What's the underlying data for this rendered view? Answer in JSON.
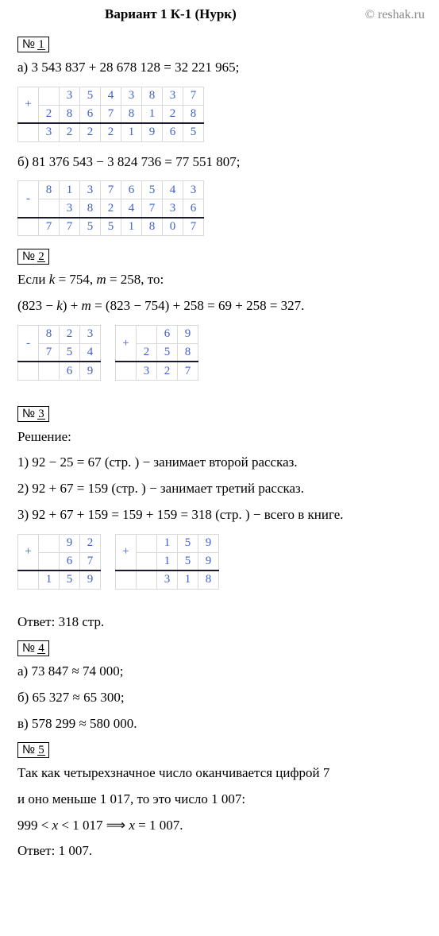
{
  "header": {
    "title": "Вариант 1  К-1 (Нурк)",
    "copyright": "© reshak.ru"
  },
  "task1": {
    "badge_prefix": "№",
    "badge_num": "1",
    "line_a": "а) 3 543 837 + 28 678 128 = 32 221 965;",
    "line_b": "б) 81 376 543 − 3 824 736 = 77 551 807;",
    "calc_a": {
      "op": "+",
      "rows": [
        [
          "",
          "",
          "3",
          "5",
          "4",
          "3",
          "8",
          "3",
          "7"
        ],
        [
          "",
          "2",
          "8",
          "6",
          "7",
          "8",
          "1",
          "2",
          "8"
        ],
        [
          "",
          "3",
          "2",
          "2",
          "2",
          "1",
          "9",
          "6",
          "5"
        ]
      ]
    },
    "calc_b": {
      "op": "-",
      "rows": [
        [
          "",
          "8",
          "1",
          "3",
          "7",
          "6",
          "5",
          "4",
          "3"
        ],
        [
          "",
          "",
          "3",
          "8",
          "2",
          "4",
          "7",
          "3",
          "6"
        ],
        [
          "",
          "7",
          "7",
          "5",
          "5",
          "1",
          "8",
          "0",
          "7"
        ]
      ]
    }
  },
  "task2": {
    "badge_prefix": "№",
    "badge_num": "2",
    "line1_pre": "Если ",
    "line1_k": "k",
    "line1_mid1": " = 754, ",
    "line1_m": "m",
    "line1_mid2": " = 258, то:",
    "line2_pre": "(823 − ",
    "line2_k": "k",
    "line2_mid1": ") + ",
    "line2_m": "m",
    "line2_rest": " = (823 − 754) + 258 = 69 + 258 = 327.",
    "calc_a": {
      "op": "-",
      "rows": [
        [
          "",
          "8",
          "2",
          "3"
        ],
        [
          "",
          "7",
          "5",
          "4"
        ],
        [
          "",
          "",
          "6",
          "9"
        ]
      ]
    },
    "calc_b": {
      "op": "+",
      "rows": [
        [
          "",
          "",
          "6",
          "9"
        ],
        [
          "",
          "2",
          "5",
          "8"
        ],
        [
          "",
          "3",
          "2",
          "7"
        ]
      ]
    }
  },
  "task3": {
    "badge_prefix": "№",
    "badge_num": "3",
    "heading": "Решение:",
    "line1": "1) 92 − 25 = 67 (стр. ) − занимает второй рассказ.",
    "line2": "2) 92 + 67 = 159 (стр. ) − занимает третий рассказ.",
    "line3": "3) 92 + 67 + 159 = 159 + 159 = 318 (стр. ) − всего в книге.",
    "calc_a": {
      "op": "+",
      "rows": [
        [
          "",
          "",
          "9",
          "2"
        ],
        [
          "",
          "",
          "6",
          "7"
        ],
        [
          "",
          "1",
          "5",
          "9"
        ]
      ]
    },
    "calc_b": {
      "op": "+",
      "rows": [
        [
          "",
          "",
          "1",
          "5",
          "9"
        ],
        [
          "",
          "",
          "1",
          "5",
          "9"
        ],
        [
          "",
          "",
          "3",
          "1",
          "8"
        ]
      ]
    },
    "answer": "Ответ: 318 стр."
  },
  "task4": {
    "badge_prefix": "№",
    "badge_num": "4",
    "line_a": "а) 73 847 ≈ 74 000;",
    "line_b": "б) 65 327 ≈ 65 300;",
    "line_c": "в) 578 299 ≈ 580 000."
  },
  "task5": {
    "badge_prefix": "№",
    "badge_num": "5",
    "line1": "Так как четырехзначное число оканчивается цифрой 7",
    "line2": "и оно меньше 1 017, то это число 1 007:",
    "line3_pre": "999 < ",
    "line3_x1": "x",
    "line3_mid": " < 1 017   ⟹   ",
    "line3_x2": "x",
    "line3_end": " = 1 007.",
    "answer": "Ответ: 1 007."
  }
}
